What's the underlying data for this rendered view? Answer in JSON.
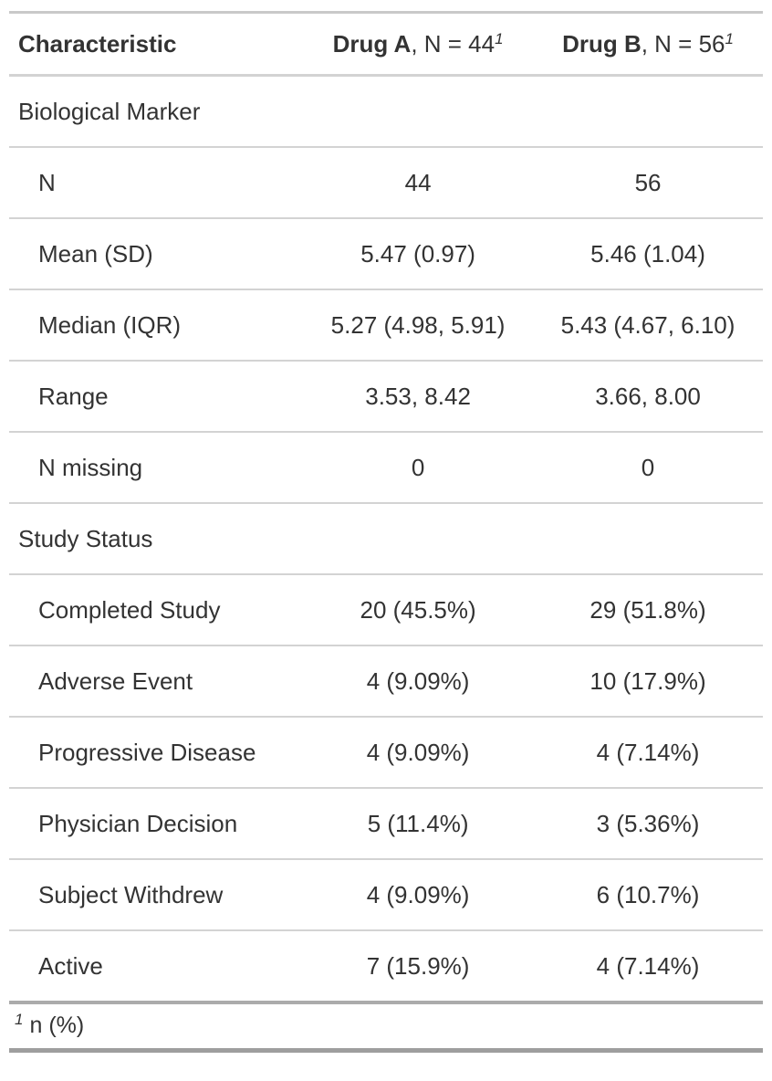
{
  "colors": {
    "text": "#333333",
    "rule_thin": "#D3D3D3",
    "rule_top": "#C9C9C9",
    "rule_heavy": "#ABABAB",
    "rule_bottom": "#9E9E9E",
    "background": "#FFFFFF"
  },
  "table": {
    "header": {
      "characteristic": "Characteristic",
      "drug_a": {
        "name": "Drug A",
        "suffix": ", N = 44",
        "footnote_mark": "1"
      },
      "drug_b": {
        "name": "Drug B",
        "suffix": ", N = 56",
        "footnote_mark": "1"
      }
    },
    "rows": [
      {
        "label": "Biological Marker",
        "indent": false,
        "values": [
          "",
          ""
        ]
      },
      {
        "label": "N",
        "indent": true,
        "values": [
          "44",
          "56"
        ]
      },
      {
        "label": "Mean (SD)",
        "indent": true,
        "values": [
          "5.47 (0.97)",
          "5.46 (1.04)"
        ]
      },
      {
        "label": "Median (IQR)",
        "indent": true,
        "values": [
          "5.27 (4.98, 5.91)",
          "5.43 (4.67, 6.10)"
        ]
      },
      {
        "label": "Range",
        "indent": true,
        "values": [
          "3.53, 8.42",
          "3.66, 8.00"
        ]
      },
      {
        "label": "N missing",
        "indent": true,
        "values": [
          "0",
          "0"
        ]
      },
      {
        "label": "Study Status",
        "indent": false,
        "values": [
          "",
          ""
        ]
      },
      {
        "label": "Completed Study",
        "indent": true,
        "values": [
          "20 (45.5%)",
          "29 (51.8%)"
        ]
      },
      {
        "label": "Adverse Event",
        "indent": true,
        "values": [
          "4 (9.09%)",
          "10 (17.9%)"
        ]
      },
      {
        "label": "Progressive Disease",
        "indent": true,
        "values": [
          "4 (9.09%)",
          "4 (7.14%)"
        ]
      },
      {
        "label": "Physician Decision",
        "indent": true,
        "values": [
          "5 (11.4%)",
          "3 (5.36%)"
        ]
      },
      {
        "label": "Subject Withdrew",
        "indent": true,
        "values": [
          "4 (9.09%)",
          "6 (10.7%)"
        ]
      },
      {
        "label": "Active",
        "indent": true,
        "values": [
          "7 (15.9%)",
          "4 (7.14%)"
        ]
      }
    ],
    "footnote": {
      "mark": "1",
      "text": "n (%)"
    }
  }
}
